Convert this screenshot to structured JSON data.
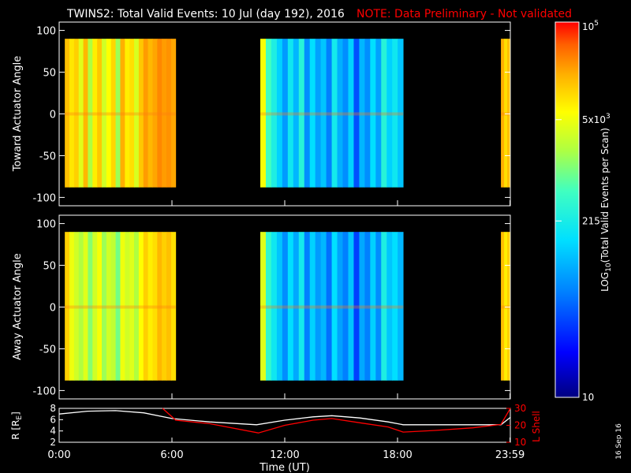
{
  "title": "TWINS2: Total Valid Events: 10 Jul (day 192), 2016",
  "note": "NOTE: Data Preliminary - Not validated",
  "footer_date": "16 Sep 16",
  "colors": {
    "background": "#000000",
    "axes": "#ffffff",
    "note": "#ff0000",
    "lshell": "#ff0000",
    "radius": "#ffffff"
  },
  "chart_data": [
    {
      "type": "heatmap",
      "panel": "toward",
      "ylabel": "Toward Actuator Angle",
      "ylim": [
        -110,
        110
      ],
      "y_ticks": [
        100,
        50,
        0,
        -50,
        -100
      ],
      "y_range_of_data": [
        -88,
        90
      ],
      "xlim": [
        0,
        24
      ],
      "data_intervals": [
        {
          "start": 0.3,
          "end": 6.2,
          "levels": [
            0.84,
            0.79,
            0.82,
            0.72,
            0.85,
            0.66,
            0.78,
            0.83,
            0.7,
            0.76,
            0.81,
            0.64,
            0.86,
            0.78,
            0.8,
            0.71,
            0.83,
            0.88,
            0.85,
            0.87,
            0.9,
            0.88,
            0.89,
            0.87
          ]
        },
        {
          "start": 10.7,
          "end": 18.3,
          "levels": [
            0.75,
            0.55,
            0.48,
            0.4,
            0.32,
            0.45,
            0.36,
            0.5,
            0.3,
            0.42,
            0.33,
            0.38,
            0.28,
            0.46,
            0.35,
            0.3,
            0.4,
            0.22,
            0.36,
            0.3,
            0.42,
            0.33,
            0.5,
            0.4,
            0.45,
            0.38
          ]
        },
        {
          "start": 23.5,
          "end": 24.0,
          "levels": [
            0.86,
            0.8,
            0.84
          ]
        }
      ]
    },
    {
      "type": "heatmap",
      "panel": "away",
      "ylabel": "Away Actuator Angle",
      "ylim": [
        -110,
        110
      ],
      "y_ticks": [
        100,
        50,
        0,
        -50,
        -100
      ],
      "y_range_of_data": [
        -88,
        90
      ],
      "xlim": [
        0,
        24
      ],
      "data_intervals": [
        {
          "start": 0.3,
          "end": 6.2,
          "levels": [
            0.82,
            0.74,
            0.7,
            0.66,
            0.72,
            0.62,
            0.7,
            0.75,
            0.64,
            0.7,
            0.68,
            0.6,
            0.74,
            0.7,
            0.72,
            0.66,
            0.76,
            0.82,
            0.78,
            0.8,
            0.85,
            0.82,
            0.84,
            0.8
          ]
        },
        {
          "start": 10.7,
          "end": 18.3,
          "levels": [
            0.72,
            0.52,
            0.45,
            0.38,
            0.3,
            0.42,
            0.34,
            0.46,
            0.28,
            0.4,
            0.32,
            0.36,
            0.26,
            0.42,
            0.33,
            0.28,
            0.38,
            0.2,
            0.34,
            0.28,
            0.4,
            0.3,
            0.48,
            0.38,
            0.42,
            0.36
          ]
        },
        {
          "start": 23.5,
          "end": 24.0,
          "levels": [
            0.84,
            0.78,
            0.82
          ]
        }
      ]
    },
    {
      "type": "line",
      "panel": "orbit",
      "xlabel": "Time (UT)",
      "x_ticks": [
        0,
        6,
        12,
        18,
        23.983
      ],
      "x_tick_labels": [
        "0:00",
        "6:00",
        "12:00",
        "18:00",
        "23:59"
      ],
      "xlim": [
        0,
        24
      ],
      "ylabel_left": "R [RE]",
      "ylabel_left_main": "R [R",
      "ylabel_left_sub": "E",
      "ylabel_left_close": "]",
      "ylim_left": [
        2,
        8
      ],
      "y_ticks_left": [
        8,
        6,
        4,
        2
      ],
      "ylabel_right": "L Shell",
      "ylim_right": [
        10,
        30
      ],
      "y_ticks_right": [
        30,
        20,
        10
      ],
      "series": [
        {
          "name": "R",
          "axis": "left",
          "x": [
            0,
            1.5,
            3,
            4.5,
            6,
            8,
            10.5,
            12,
            13.5,
            14.5,
            16,
            17.5,
            18.3,
            20,
            22,
            23.5,
            24
          ],
          "y": [
            7.0,
            7.5,
            7.6,
            7.2,
            6.2,
            5.6,
            5.1,
            5.9,
            6.5,
            6.7,
            6.3,
            5.6,
            5.1,
            5.1,
            5.1,
            5.1,
            6.4
          ]
        },
        {
          "name": "L Shell",
          "axis": "right",
          "x": [
            5.5,
            6.2,
            8,
            10.6,
            12,
            13.5,
            14.5,
            16,
            17.5,
            18.3,
            20,
            22,
            23.5,
            24
          ],
          "y": [
            30,
            23,
            21,
            15.5,
            20,
            23,
            24,
            21.5,
            19,
            16,
            17,
            18.5,
            20.5,
            30
          ]
        }
      ]
    }
  ],
  "colorbar": {
    "label": "LOG",
    "label_sub": "10",
    "label_rest": "(Total Valid Events per Scan)",
    "ticks": [
      {
        "base": "10",
        "sup": "5",
        "level": 1.0
      },
      {
        "base": "5x10",
        "sup": "3",
        "level": 0.74
      },
      {
        "base": "215",
        "sup": "",
        "level": 0.47
      },
      {
        "base": "10",
        "sup": "",
        "level": 0.0
      }
    ]
  }
}
